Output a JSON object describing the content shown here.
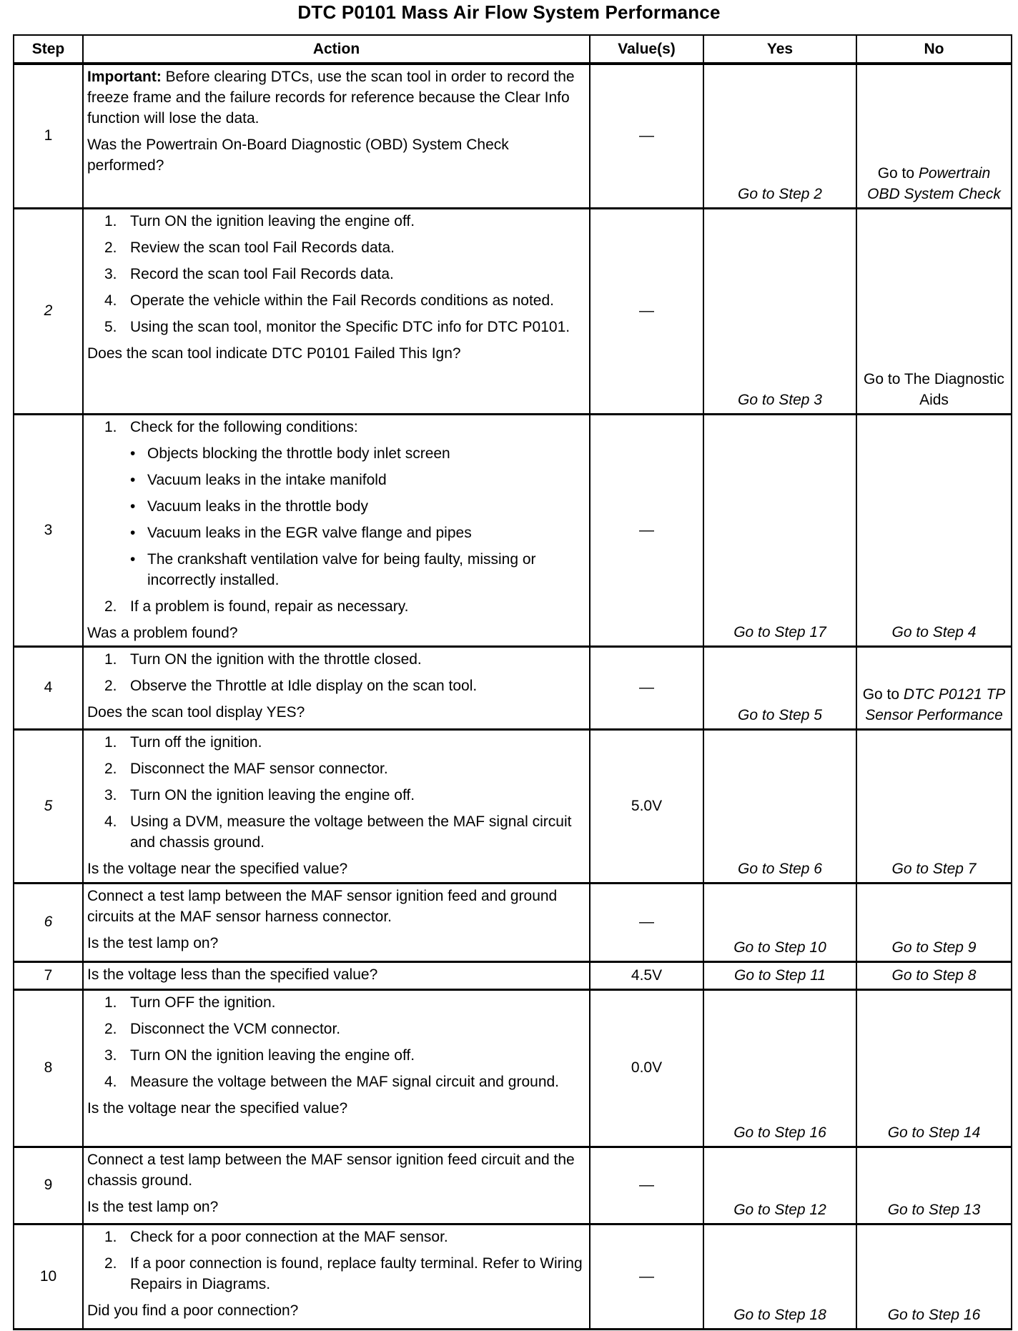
{
  "title": "DTC P0101 Mass Air Flow System Performance",
  "headers": {
    "step": "Step",
    "action": "Action",
    "values": "Value(s)",
    "yes": "Yes",
    "no": "No"
  },
  "rows": [
    {
      "step": "1",
      "step_italic": false,
      "action": [
        {
          "type": "p",
          "bold": "Important:",
          "text": " Before clearing DTCs, use the scan tool in order to record the freeze frame and the failure records for reference because the Clear Info function will lose the data."
        },
        {
          "type": "q",
          "text": "Was the Powertrain On-Board Diagnostic (OBD) System Check performed?"
        }
      ],
      "value": "—",
      "yes": "Go to Step 2",
      "no_plain": "Go to ",
      "no_italic": "Powertrain OBD System Check"
    },
    {
      "step": "2",
      "step_italic": true,
      "action": [
        {
          "type": "li",
          "n": "1.",
          "text": "Turn ON the ignition leaving the engine off."
        },
        {
          "type": "li",
          "n": "2.",
          "text": "Review the scan tool Fail Records data."
        },
        {
          "type": "li",
          "n": "3.",
          "text": "Record the scan tool Fail Records data."
        },
        {
          "type": "li",
          "n": "4.",
          "text": "Operate the vehicle within the Fail Records conditions as noted."
        },
        {
          "type": "li",
          "n": "5.",
          "text": "Using the scan tool, monitor the Specific DTC info for DTC P0101."
        },
        {
          "type": "q",
          "text": "Does the scan tool indicate DTC P0101 Failed This Ign?"
        }
      ],
      "value": "—",
      "yes": "Go to Step 3",
      "no_plain": "Go to The Diagnostic Aids",
      "no_italic": ""
    },
    {
      "step": "3",
      "step_italic": false,
      "action": [
        {
          "type": "li",
          "n": "1.",
          "text": "Check for the following conditions:"
        },
        {
          "type": "bl",
          "text": "Objects blocking the throttle body inlet screen"
        },
        {
          "type": "bl",
          "text": "Vacuum leaks in the intake manifold"
        },
        {
          "type": "bl",
          "text": "Vacuum leaks in the throttle body"
        },
        {
          "type": "bl",
          "text": "Vacuum leaks in the EGR valve flange and pipes"
        },
        {
          "type": "bl",
          "text": "The crankshaft ventilation valve for being faulty, missing or incorrectly installed."
        },
        {
          "type": "li",
          "n": "2.",
          "text": "If a problem is found, repair as necessary."
        },
        {
          "type": "q",
          "text": "Was a problem found?"
        }
      ],
      "value": "—",
      "yes": "Go to Step 17",
      "no_plain": "",
      "no_italic": "Go to Step 4"
    },
    {
      "step": "4",
      "step_italic": false,
      "action": [
        {
          "type": "li",
          "n": "1.",
          "text": "Turn ON the ignition with the throttle closed."
        },
        {
          "type": "li",
          "n": "2.",
          "text": "Observe the Throttle at Idle display on the scan tool."
        },
        {
          "type": "q",
          "text": "Does the scan tool display YES?"
        }
      ],
      "value": "—",
      "yes": "Go to Step 5",
      "no_plain": "Go to ",
      "no_italic": "DTC P0121 TP Sensor Performance"
    },
    {
      "step": "5",
      "step_italic": true,
      "action": [
        {
          "type": "li",
          "n": "1.",
          "text": "Turn off the ignition."
        },
        {
          "type": "li",
          "n": "2.",
          "text": "Disconnect the MAF sensor connector."
        },
        {
          "type": "li",
          "n": "3.",
          "text": "Turn ON the ignition leaving the engine off."
        },
        {
          "type": "li",
          "n": "4.",
          "text": "Using a DVM, measure the voltage between the MAF signal circuit and chassis ground."
        },
        {
          "type": "q",
          "text": "Is the voltage near the specified value?"
        }
      ],
      "value": "5.0V",
      "yes": "Go to Step 6",
      "no_plain": "",
      "no_italic": "Go to Step 7"
    },
    {
      "step": "6",
      "step_italic": true,
      "action": [
        {
          "type": "p",
          "text": "Connect a test lamp between the MAF sensor ignition feed and ground circuits at the MAF sensor harness connector."
        },
        {
          "type": "q",
          "text": "Is the test lamp on?"
        }
      ],
      "value": "—",
      "yes": "Go to Step 10",
      "no_plain": "",
      "no_italic": "Go to Step 9"
    },
    {
      "step": "7",
      "step_italic": false,
      "action": [
        {
          "type": "q",
          "text": "Is the voltage less than the specified value?"
        }
      ],
      "value": "4.5V",
      "yes": "Go to Step 11",
      "no_plain": "",
      "no_italic": "Go to Step 8"
    },
    {
      "step": "8",
      "step_italic": false,
      "action": [
        {
          "type": "li",
          "n": "1.",
          "text": "Turn OFF the ignition."
        },
        {
          "type": "li",
          "n": "2.",
          "text": "Disconnect the VCM connector."
        },
        {
          "type": "li",
          "n": "3.",
          "text": "Turn ON the ignition leaving the engine off."
        },
        {
          "type": "li",
          "n": "4.",
          "text": "Measure the voltage between the MAF signal circuit and ground."
        },
        {
          "type": "q",
          "text": "Is the voltage near the specified value?"
        }
      ],
      "value": "0.0V",
      "yes": "Go to Step 16",
      "no_plain": "",
      "no_italic": "Go to Step 14"
    },
    {
      "step": "9",
      "step_italic": false,
      "action": [
        {
          "type": "p",
          "text": "Connect a test lamp between the MAF sensor ignition feed circuit and the chassis ground."
        },
        {
          "type": "q",
          "text": "Is the test lamp on?"
        }
      ],
      "value": "—",
      "yes": "Go to Step 12",
      "no_plain": "",
      "no_italic": "Go to Step 13"
    },
    {
      "step": "10",
      "step_italic": false,
      "action": [
        {
          "type": "li",
          "n": "1.",
          "text": "Check for a poor connection at the MAF sensor."
        },
        {
          "type": "li",
          "n": "2.",
          "text": "If a poor connection is found, replace faulty terminal. Refer to Wiring Repairs in Diagrams."
        },
        {
          "type": "q",
          "text": "Did you find a poor connection?"
        }
      ],
      "value": "—",
      "yes": "Go to Step 18",
      "no_plain": "",
      "no_italic": "Go to Step 16"
    }
  ]
}
